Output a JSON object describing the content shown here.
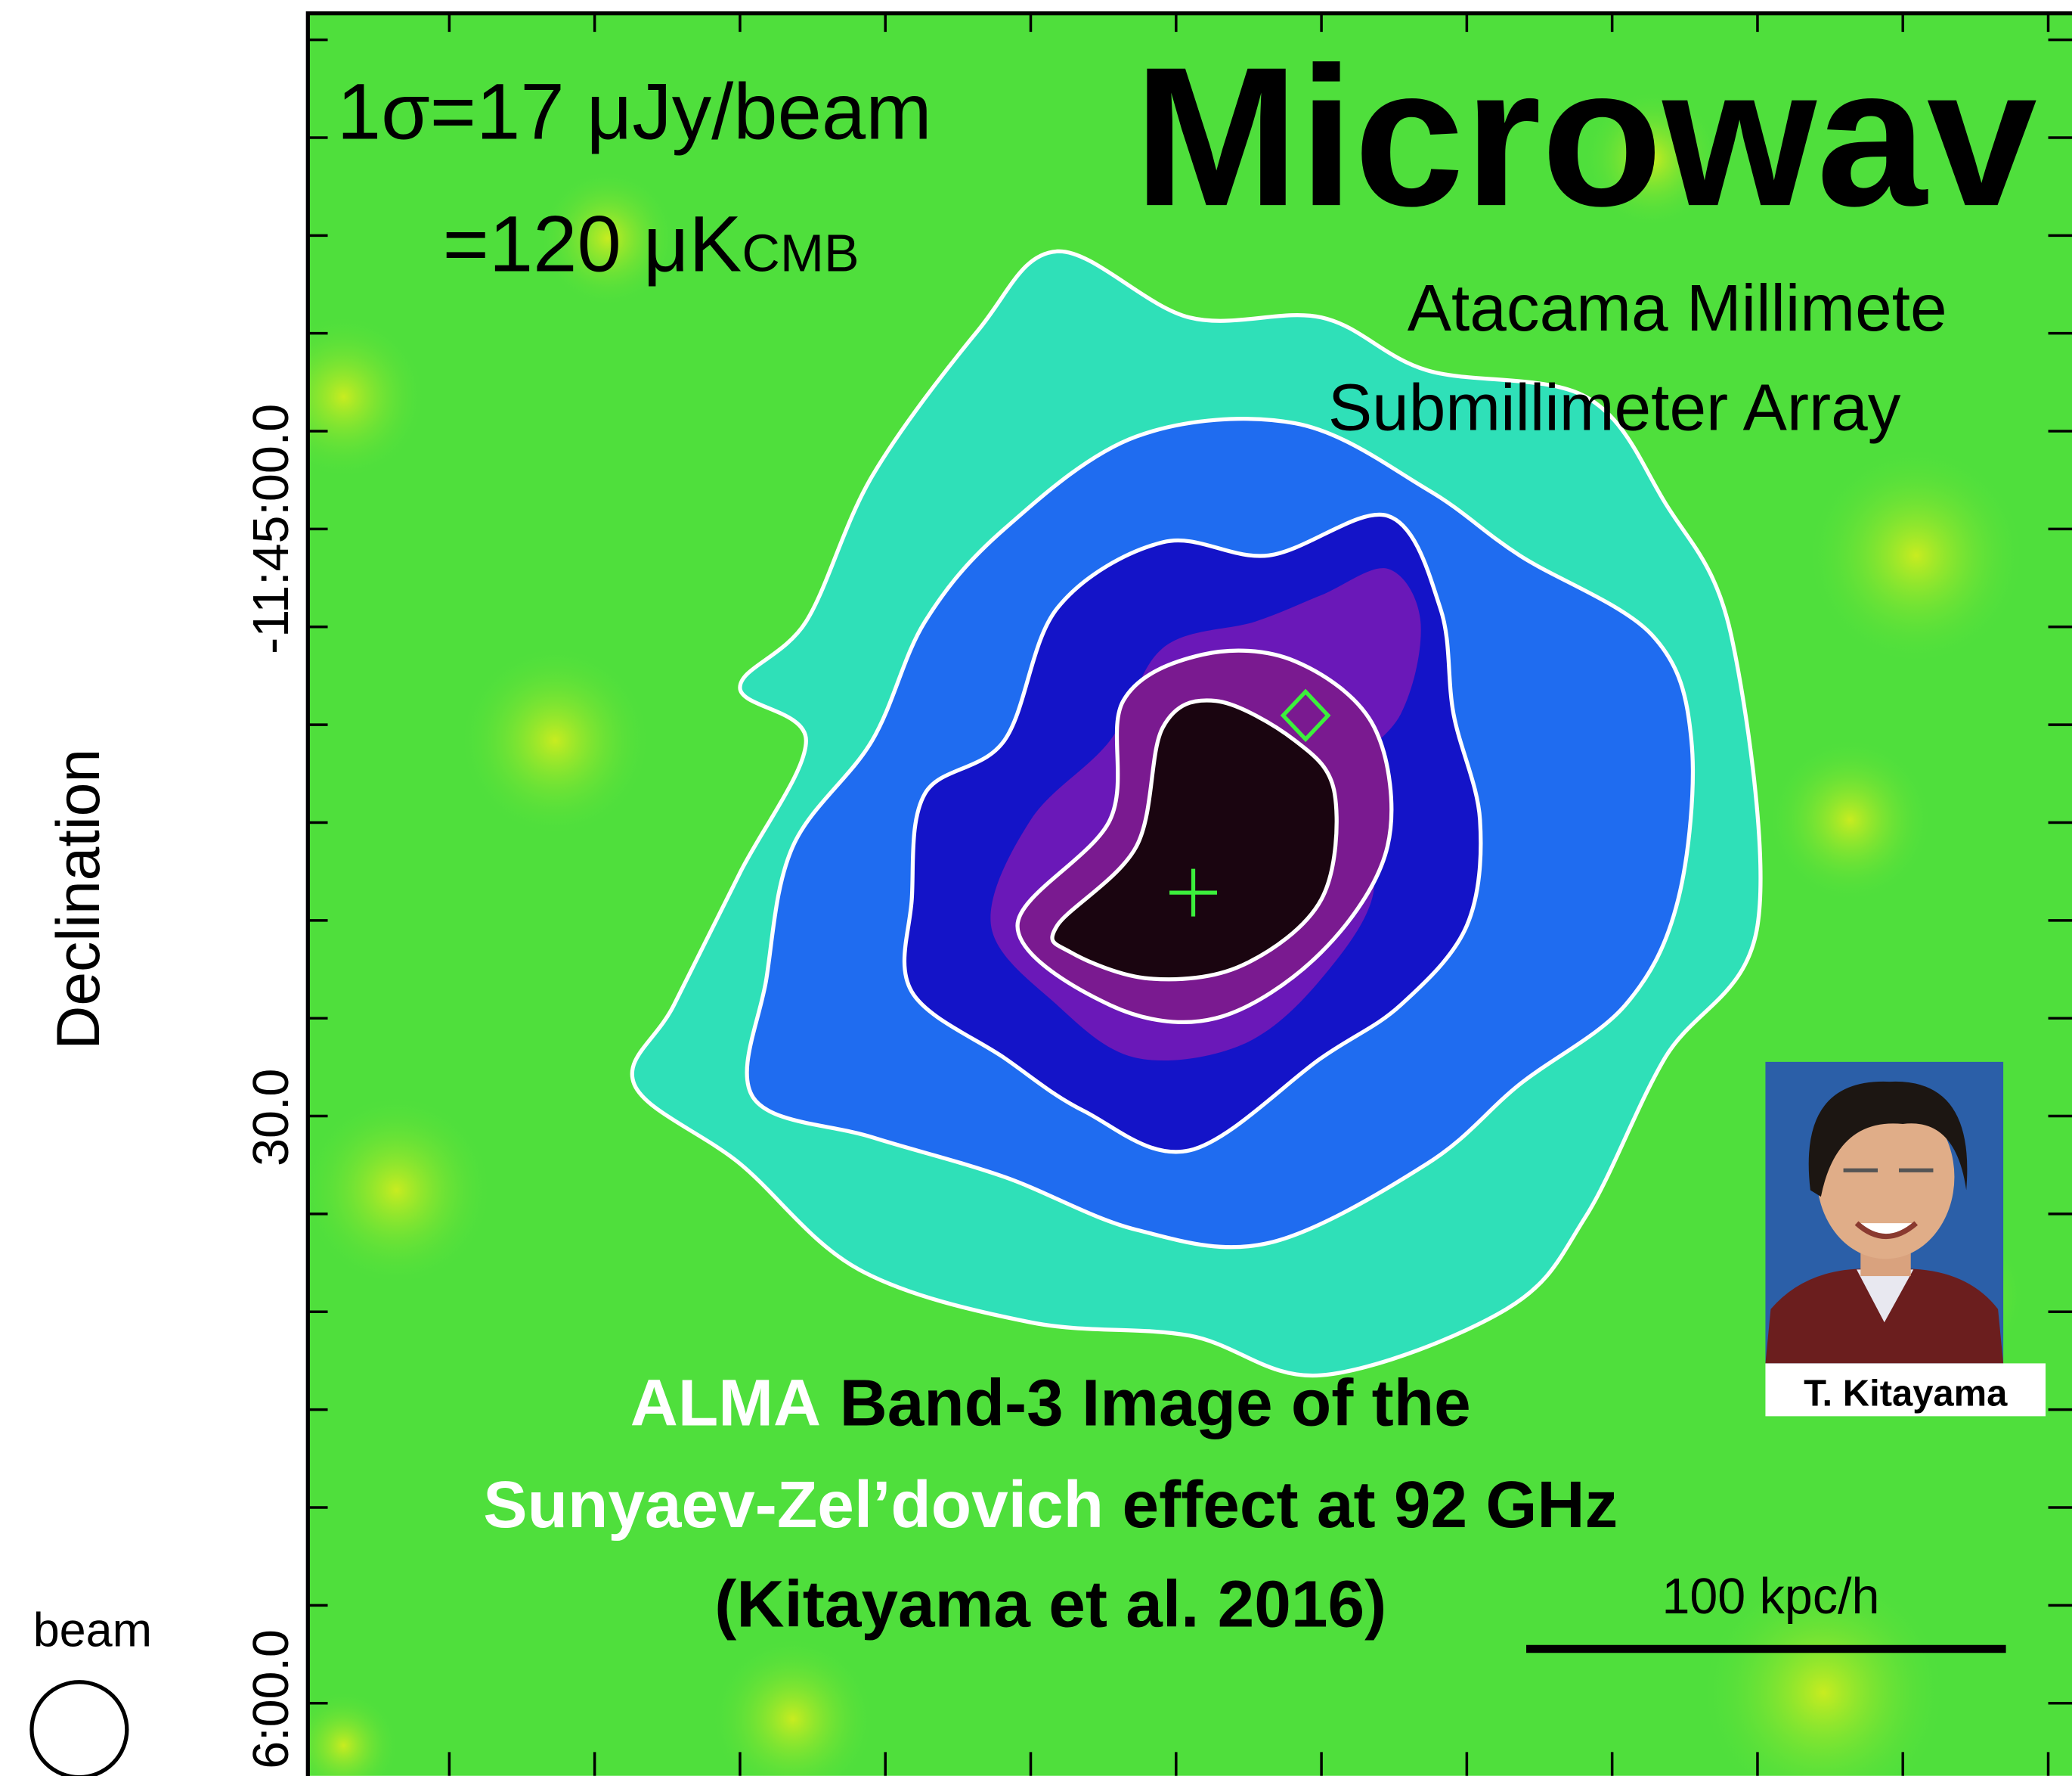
{
  "header": {
    "sigma": "1σ=17 μJy/beam",
    "sigma_k": "=120 μK",
    "sigma_k_sub": "CMB",
    "title": "Microwav",
    "subtitle_lines": [
      "Atacama Millimete",
      "Submillimeter Array"
    ]
  },
  "axis": {
    "label": "Declination",
    "ticks": [
      "-11:45:00.0",
      "30.0",
      "6:00.0"
    ]
  },
  "beam": "beam",
  "caption": {
    "line1_highlight": "ALMA",
    "line1_rest": "Band-3 Image of the",
    "line2_highlight": "Sunyaev-Zel’dovich",
    "line2_rest": "effect at 92 GHz",
    "line3": "(Kitayama et al. 2016)"
  },
  "scale_bar": "100 kpc/h",
  "photo_caption": "T. Kitayama"
}
